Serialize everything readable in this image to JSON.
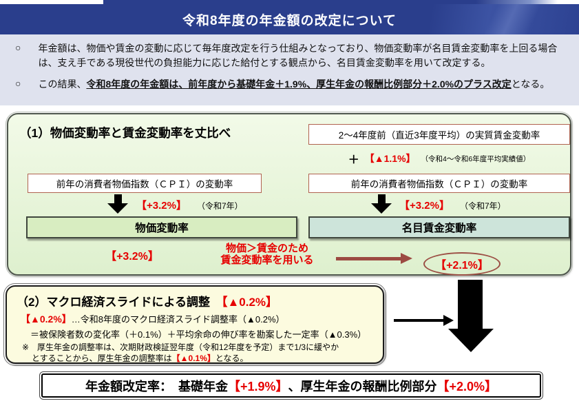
{
  "colors": {
    "navy": "#2a3e8c",
    "accent_red": "#e60000",
    "arrow_brown": "#9c4a42",
    "section1_bg": "#e9f5dc",
    "price_box_bg": "#d8edc1",
    "wage_box_bg": "#cde4da",
    "section2_bg": "#fcfbdf",
    "intro_bg": "#dfe2ee"
  },
  "banner": {
    "title": "令和8年度の年金額の改定について"
  },
  "intro": {
    "bullet_marker": "○",
    "bullet1": "年金額は、物価や賃金の変動に応じて毎年度改定を行う仕組みとなっており、物価変動率が名目賃金変動率を上回る場合は、支え手である現役世代の負担能力に応じた給付とする観点から、名目賃金変動率を用いて改定する。",
    "bullet2_prefix": "この結果、",
    "bullet2_emphasis": "令和8年度の年金額は、前年度から基礎年金＋1.9%、厚生年金の報酬比例部分＋2.0%のプラス改定",
    "bullet2_suffix": "となる。"
  },
  "section1": {
    "heading": "（1）物価変動率と賃金変動率を丈比べ",
    "real_wage_box": "2～4年度前（直近3年度平均）の実質賃金変動率",
    "plus_sign": "＋",
    "real_wage_rate": "【▲1.1%】",
    "real_wage_note": "（令和4～令和6年度平均実績値）",
    "cpi_left": "前年の消費者物価指数（ＣＰＩ）の変動率",
    "cpi_right": "前年の消費者物価指数（ＣＰＩ）の変動率",
    "cpi_left_rate": "【+3.2%】",
    "cpi_left_year": "（令和7年）",
    "cpi_right_rate": "【+3.2%】",
    "cpi_right_year": "（令和7年）",
    "price_box": "物価変動率",
    "wage_box": "名目賃金変動率",
    "price_result": "【+3.2%】",
    "middle_note_line1": "物価＞賃金のため",
    "middle_note_line2": "賃金変動率を用いる",
    "wage_result": "【+2.1%】"
  },
  "section2": {
    "heading": "（2）マクロ経済スライドによる調整",
    "heading_gap": "　",
    "heading_rate": "【▲0.2%】",
    "line1_rate": "【▲0.2%】",
    "line1_text": "…令和8年度のマクロ経済スライド調整率（▲0.2%）",
    "line2": "＝被保険者数の変化率（＋0.1%）＋平均余命の伸び率を勘案した一定率（▲0.3%）",
    "note_line1": "※　厚生年金の調整率は、次期財政検証翌年度（令和12年度を予定）まで1/3に緩やか",
    "note_line2_pre": "とすることから、厚生年金の調整率は",
    "note_rate": "【▲0.1%】",
    "note_line2_post": "となる。"
  },
  "result": {
    "label": "年金額改定率：　基礎年金",
    "basic_rate": "【+1.9%】",
    "mid": "、厚生年金の報酬比例部分",
    "employee_rate": "【+2.0%】"
  }
}
